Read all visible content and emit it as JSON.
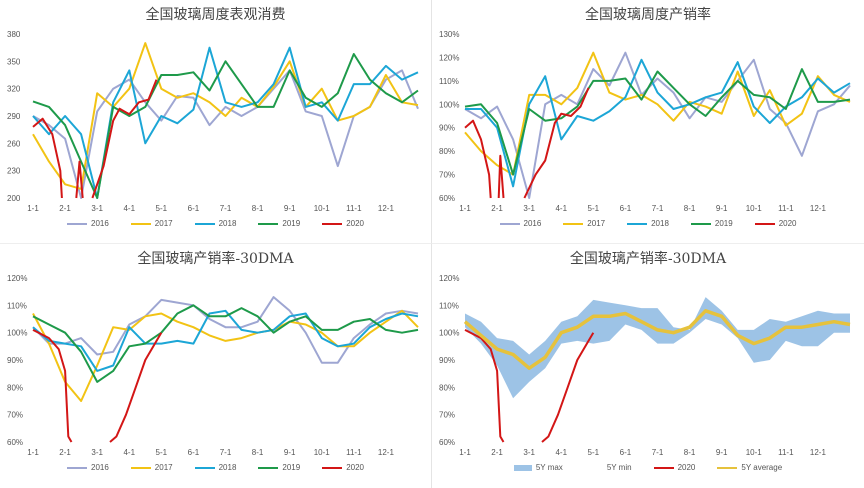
{
  "chart_data": [
    {
      "type": "line",
      "title": "全国玻璃周度表观消费",
      "xlim": [
        0,
        12
      ],
      "ylim": [
        200,
        380
      ],
      "yticks": [
        200,
        230,
        260,
        290,
        320,
        350,
        380
      ],
      "ytick_labels": [
        "200",
        "230",
        "260",
        "290",
        "320",
        "350",
        "380"
      ],
      "xticks": [
        0,
        1,
        2,
        3,
        4,
        5,
        6,
        7,
        8,
        9,
        10,
        11
      ],
      "xtick_labels": [
        "1-1",
        "2-1",
        "3-1",
        "4-1",
        "5-1",
        "6-1",
        "7-1",
        "8-1",
        "9-1",
        "10-1",
        "11-1",
        "12-1"
      ],
      "x": [
        0,
        0.5,
        1,
        1.5,
        2,
        2.5,
        3,
        3.5,
        4,
        4.5,
        5,
        5.5,
        6,
        6.5,
        7,
        7.5,
        8,
        8.5,
        9,
        9.5,
        10,
        10.5,
        11,
        11.5,
        12
      ],
      "series": [
        {
          "name": "2016",
          "color": "#9ea6d2",
          "y": [
            290,
            280,
            265,
            200,
            295,
            320,
            330,
            305,
            285,
            312,
            310,
            280,
            300,
            290,
            300,
            320,
            340,
            295,
            290,
            235,
            290,
            300,
            330,
            340,
            298
          ]
        },
        {
          "name": "2017",
          "color": "#f2c314",
          "y": [
            270,
            240,
            215,
            210,
            315,
            300,
            320,
            370,
            320,
            310,
            315,
            305,
            290,
            310,
            300,
            322,
            350,
            300,
            320,
            285,
            290,
            300,
            335,
            305,
            302
          ]
        },
        {
          "name": "2018",
          "color": "#1ca6d6",
          "y": [
            290,
            270,
            290,
            270,
            200,
            305,
            340,
            260,
            290,
            282,
            297,
            365,
            305,
            300,
            305,
            325,
            365,
            300,
            305,
            285,
            325,
            325,
            345,
            330,
            338
          ]
        },
        {
          "name": "2019",
          "color": "#1e9a4a",
          "y": [
            306,
            300,
            280,
            240,
            200,
            300,
            290,
            300,
            335,
            335,
            338,
            318,
            350,
            325,
            300,
            300,
            340,
            310,
            300,
            315,
            358,
            330,
            315,
            305,
            318
          ]
        },
        {
          "name": "2020",
          "color": "#d31616",
          "x": [
            0,
            0.3,
            0.6,
            0.85,
            0.9,
            null,
            1.35,
            1.45,
            1.55,
            null,
            1.85,
            2.2,
            2.5,
            2.7,
            3.0,
            3.3,
            3.6,
            3.85
          ],
          "y": [
            278,
            287,
            270,
            230,
            200,
            null,
            200,
            240,
            200,
            null,
            200,
            235,
            285,
            298,
            292,
            305,
            308,
            330
          ]
        }
      ]
    },
    {
      "type": "line",
      "title": "全国玻璃周度产销率",
      "xlim": [
        0,
        12
      ],
      "ylim": [
        60,
        130
      ],
      "yticks": [
        60,
        70,
        80,
        90,
        100,
        110,
        120,
        130
      ],
      "ytick_labels": [
        "60%",
        "70%",
        "80%",
        "90%",
        "100%",
        "110%",
        "120%",
        "130%"
      ],
      "xticks": [
        0,
        1,
        2,
        3,
        4,
        5,
        6,
        7,
        8,
        9,
        10,
        11
      ],
      "xtick_labels": [
        "1-1",
        "2-1",
        "3-1",
        "4-1",
        "5-1",
        "6-1",
        "7-1",
        "8-1",
        "9-1",
        "10-1",
        "11-1",
        "12-1"
      ],
      "x": [
        0,
        0.5,
        1,
        1.5,
        2,
        2.5,
        3,
        3.5,
        4,
        4.5,
        5,
        5.5,
        6,
        6.5,
        7,
        7.5,
        8,
        8.5,
        9,
        9.5,
        10,
        10.5,
        11,
        11.5,
        12
      ],
      "series": [
        {
          "name": "2016",
          "color": "#9ea6d2",
          "y": [
            98,
            94,
            99,
            85,
            60,
            100,
            104,
            100,
            115,
            108,
            122,
            104,
            111,
            105,
            94,
            103,
            101,
            110,
            119,
            98,
            92,
            78,
            97,
            100,
            108
          ]
        },
        {
          "name": "2017",
          "color": "#f2c314",
          "y": [
            88,
            80,
            74,
            70,
            104,
            104,
            100,
            107,
            122,
            105,
            102,
            104,
            100,
            93,
            101,
            99,
            96,
            114,
            95,
            106,
            91,
            96,
            112,
            104,
            101
          ]
        },
        {
          "name": "2018",
          "color": "#1ca6d6",
          "y": [
            98,
            98,
            90,
            65,
            100,
            112,
            85,
            95,
            93,
            97,
            103,
            119,
            105,
            98,
            100,
            103,
            105,
            118,
            99,
            92,
            99,
            103,
            111,
            105,
            109
          ]
        },
        {
          "name": "2019",
          "color": "#1e9a4a",
          "y": [
            99,
            100,
            92,
            70,
            98,
            93,
            94,
            99,
            110,
            110,
            111,
            102,
            114,
            107,
            100,
            95,
            103,
            110,
            104,
            103,
            98,
            115,
            101,
            101,
            102
          ]
        },
        {
          "name": "2020",
          "color": "#d31616",
          "x": [
            0,
            0.25,
            0.5,
            0.75,
            0.8,
            null,
            1.05,
            1.1,
            1.2,
            null,
            1.85,
            2.2,
            2.5,
            2.8,
            3.0,
            3.3,
            3.6,
            3.85
          ],
          "y": [
            90,
            93,
            85,
            70,
            60,
            null,
            60,
            78,
            60,
            null,
            60,
            70,
            76,
            92,
            96,
            95,
            99,
            107
          ]
        }
      ]
    },
    {
      "type": "line",
      "title": "全国玻璃产销率-30DMA",
      "xlim": [
        0,
        12
      ],
      "ylim": [
        60,
        120
      ],
      "yticks": [
        60,
        70,
        80,
        90,
        100,
        110,
        120
      ],
      "ytick_labels": [
        "60%",
        "70%",
        "80%",
        "90%",
        "100%",
        "110%",
        "120%"
      ],
      "xticks": [
        0,
        1,
        2,
        3,
        4,
        5,
        6,
        7,
        8,
        9,
        10,
        11
      ],
      "xtick_labels": [
        "1-1",
        "2-1",
        "3-1",
        "4-1",
        "5-1",
        "6-1",
        "7-1",
        "8-1",
        "9-1",
        "10-1",
        "11-1",
        "12-1"
      ],
      "x": [
        0,
        0.5,
        1,
        1.5,
        2,
        2.5,
        3,
        3.5,
        4,
        4.5,
        5,
        5.5,
        6,
        6.5,
        7,
        7.5,
        8,
        8.5,
        9,
        9.5,
        10,
        10.5,
        11,
        11.5,
        12
      ],
      "series": [
        {
          "name": "2016",
          "color": "#9ea6d2",
          "y": [
            102,
            96,
            96,
            98,
            92,
            93,
            103,
            106,
            112,
            111,
            110,
            105,
            102,
            102,
            104,
            113,
            108,
            100,
            89,
            89,
            98,
            103,
            107,
            108,
            107
          ]
        },
        {
          "name": "2017",
          "color": "#f2c314",
          "y": [
            107,
            96,
            82,
            75,
            88,
            102,
            101,
            106,
            107,
            104,
            102,
            99,
            97,
            98,
            100,
            101,
            104,
            103,
            100,
            95,
            95,
            100,
            104,
            108,
            102
          ]
        },
        {
          "name": "2018",
          "color": "#1ca6d6",
          "y": [
            102,
            97,
            96,
            95,
            86,
            88,
            102,
            96,
            96,
            97,
            96,
            107,
            108,
            101,
            100,
            101,
            106,
            107,
            98,
            95,
            96,
            102,
            105,
            107,
            106
          ]
        },
        {
          "name": "2019",
          "color": "#1e9a4a",
          "y": [
            106,
            103,
            100,
            93,
            82,
            86,
            95,
            96,
            100,
            107,
            110,
            106,
            106,
            109,
            106,
            100,
            104,
            106,
            101,
            101,
            104,
            105,
            101,
            100,
            101
          ]
        },
        {
          "name": "2020",
          "color": "#d31616",
          "x": [
            0,
            0.5,
            0.8,
            1.0,
            1.1,
            1.2,
            null,
            2.4,
            2.6,
            2.9,
            3.2,
            3.5,
            3.8,
            4.0
          ],
          "y": [
            101,
            98,
            94,
            86,
            62,
            60,
            null,
            60,
            62,
            70,
            80,
            90,
            96,
            100
          ]
        }
      ]
    },
    {
      "type": "area",
      "title": "全国玻璃产销率-30DMA",
      "xlim": [
        0,
        12
      ],
      "ylim": [
        60,
        120
      ],
      "yticks": [
        60,
        70,
        80,
        90,
        100,
        110,
        120
      ],
      "ytick_labels": [
        "60%",
        "70%",
        "80%",
        "90%",
        "100%",
        "110%",
        "120%"
      ],
      "xticks": [
        0,
        1,
        2,
        3,
        4,
        5,
        6,
        7,
        8,
        9,
        10,
        11
      ],
      "xtick_labels": [
        "1-1",
        "2-1",
        "3-1",
        "4-1",
        "5-1",
        "6-1",
        "7-1",
        "8-1",
        "9-1",
        "10-1",
        "11-1",
        "12-1"
      ],
      "x": [
        0,
        0.5,
        1,
        1.5,
        2,
        2.5,
        3,
        3.5,
        4,
        4.5,
        5,
        5.5,
        6,
        6.5,
        7,
        7.5,
        8,
        8.5,
        9,
        9.5,
        10,
        10.5,
        11,
        11.5,
        12
      ],
      "band": {
        "max_name": "5Y max",
        "min_name": "5Y min",
        "color": "#9dc3e6",
        "max": [
          107,
          104,
          98,
          97,
          92,
          97,
          104,
          106,
          112,
          111,
          110,
          109,
          109,
          102,
          101,
          113,
          108,
          101,
          101,
          105,
          104,
          106,
          108,
          107,
          107
        ],
        "min": [
          102,
          96,
          88,
          76,
          82,
          87,
          96,
          97,
          96,
          97,
          103,
          101,
          96,
          96,
          100,
          105,
          103,
          98,
          89,
          90,
          97,
          95,
          95,
          100,
          100
        ]
      },
      "series": [
        {
          "name": "2020",
          "color": "#d31616",
          "x": [
            0,
            0.5,
            0.8,
            1.0,
            1.1,
            1.2,
            null,
            2.4,
            2.6,
            2.9,
            3.2,
            3.5,
            3.8,
            4.0
          ],
          "y": [
            101,
            98,
            94,
            86,
            62,
            60,
            null,
            60,
            62,
            70,
            80,
            90,
            96,
            100
          ]
        },
        {
          "name": "5Y average",
          "color": "#e6c23c",
          "width": 3.5,
          "y": [
            104,
            99,
            94,
            92,
            87,
            91,
            100,
            102,
            106,
            106,
            107,
            104,
            101,
            100,
            102,
            108,
            106,
            99,
            96,
            98,
            102,
            102,
            103,
            104,
            103
          ]
        }
      ]
    }
  ]
}
